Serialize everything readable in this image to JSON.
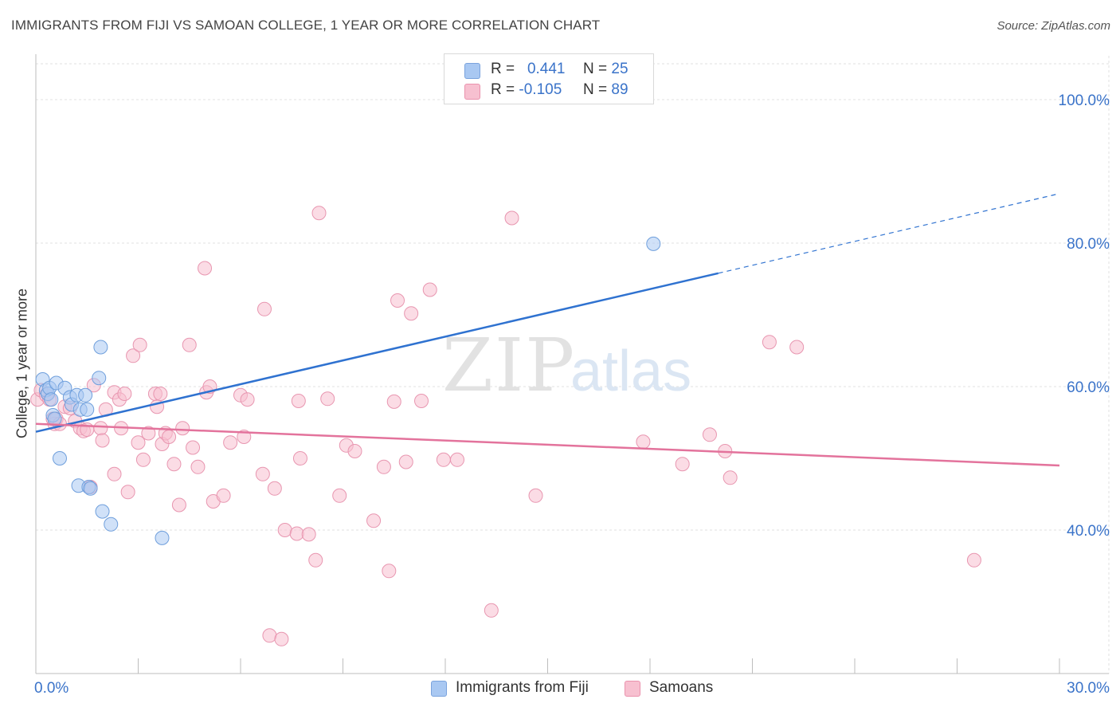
{
  "header": {
    "title": "IMMIGRANTS FROM FIJI VS SAMOAN COLLEGE, 1 YEAR OR MORE CORRELATION CHART",
    "source": "Source: ZipAtlas.com"
  },
  "watermark": {
    "zip": "ZIP",
    "atlas": "atlas"
  },
  "legend": {
    "rows": [
      {
        "r_label": "R =",
        "r_value": "0.441",
        "n_label": "N =",
        "n_value": "25",
        "color": "#a9c8f2",
        "border": "#7aa3dd"
      },
      {
        "r_label": "R =",
        "r_value": "-0.105",
        "n_label": "N =",
        "n_value": "89",
        "color": "#f7c0d0",
        "border": "#ea92ad"
      }
    ]
  },
  "bottom_legend": [
    {
      "label": "Immigrants from Fiji",
      "color": "#a9c8f2",
      "border": "#7aa3dd"
    },
    {
      "label": "Samoans",
      "color": "#f7c0d0",
      "border": "#ea92ad"
    }
  ],
  "colors": {
    "fiji_fill": "#a9c8f2",
    "fiji_stroke": "#6f9fdc",
    "fiji_line": "#2f72d0",
    "samoan_fill": "#f7c0d0",
    "samoan_stroke": "#e896b0",
    "samoan_line": "#e3739c",
    "tick_label": "#3a73c9",
    "grid": "#e2e2e2"
  },
  "chart_data": {
    "type": "scatter",
    "title": "IMMIGRANTS FROM FIJI VS SAMOAN COLLEGE, 1 YEAR OR MORE CORRELATION CHART",
    "xlabel": "",
    "ylabel": "College, 1 year or more",
    "xlim": [
      0,
      30
    ],
    "ylim": [
      20,
      105
    ],
    "x_tick_labels": [
      "0.0%",
      "30.0%"
    ],
    "y_ticks": [
      40,
      60,
      80,
      100
    ],
    "y_tick_labels": [
      "40.0%",
      "60.0%",
      "80.0%",
      "100.0%"
    ],
    "grid": true,
    "legend_position": "top-center",
    "series": [
      {
        "name": "Immigrants from Fiji",
        "r": 0.441,
        "n": 25,
        "trend": {
          "x0": 0,
          "y0": 53.7,
          "x_solid_end": 20,
          "y_solid_end": 75.8,
          "x_dash_end": 30,
          "y_dash_end": 86.9
        },
        "points": [
          [
            0.2,
            61.0
          ],
          [
            0.3,
            59.5
          ],
          [
            0.35,
            59.0
          ],
          [
            0.4,
            59.8
          ],
          [
            0.45,
            58.2
          ],
          [
            0.5,
            56.0
          ],
          [
            0.55,
            55.5
          ],
          [
            0.6,
            60.5
          ],
          [
            0.7,
            50.0
          ],
          [
            0.85,
            59.8
          ],
          [
            1.0,
            58.5
          ],
          [
            1.05,
            57.5
          ],
          [
            1.2,
            58.8
          ],
          [
            1.3,
            56.8
          ],
          [
            1.45,
            58.8
          ],
          [
            1.5,
            56.8
          ],
          [
            1.85,
            61.2
          ],
          [
            1.9,
            65.5
          ],
          [
            1.25,
            46.2
          ],
          [
            1.55,
            46.0
          ],
          [
            1.6,
            45.8
          ],
          [
            1.95,
            42.6
          ],
          [
            2.2,
            40.8
          ],
          [
            3.7,
            38.9
          ],
          [
            18.1,
            79.9
          ]
        ]
      },
      {
        "name": "Samoans",
        "r": -0.105,
        "n": 89,
        "trend": {
          "x0": 0,
          "y0": 54.8,
          "x_end": 30,
          "y_end": 49.0
        },
        "points": [
          [
            0.05,
            58.2
          ],
          [
            0.15,
            59.5
          ],
          [
            0.3,
            58.8
          ],
          [
            0.4,
            58.2
          ],
          [
            0.5,
            55.5
          ],
          [
            0.55,
            54.8
          ],
          [
            0.6,
            55.5
          ],
          [
            0.7,
            54.8
          ],
          [
            0.85,
            57.2
          ],
          [
            1.0,
            57.0
          ],
          [
            1.15,
            55.2
          ],
          [
            1.3,
            54.2
          ],
          [
            1.4,
            53.8
          ],
          [
            1.5,
            54.0
          ],
          [
            1.6,
            46.0
          ],
          [
            1.7,
            60.2
          ],
          [
            1.9,
            54.2
          ],
          [
            1.95,
            52.5
          ],
          [
            2.05,
            56.8
          ],
          [
            2.3,
            47.8
          ],
          [
            2.3,
            59.2
          ],
          [
            2.45,
            58.2
          ],
          [
            2.5,
            54.2
          ],
          [
            2.6,
            59.0
          ],
          [
            2.7,
            45.3
          ],
          [
            2.85,
            64.3
          ],
          [
            3.0,
            52.2
          ],
          [
            3.05,
            65.8
          ],
          [
            3.15,
            49.8
          ],
          [
            3.3,
            53.5
          ],
          [
            3.5,
            59.0
          ],
          [
            3.55,
            57.2
          ],
          [
            3.65,
            59.0
          ],
          [
            3.7,
            52.0
          ],
          [
            3.8,
            53.5
          ],
          [
            3.9,
            53.0
          ],
          [
            4.05,
            49.2
          ],
          [
            4.2,
            43.5
          ],
          [
            4.3,
            54.2
          ],
          [
            4.5,
            65.8
          ],
          [
            4.6,
            51.5
          ],
          [
            4.75,
            48.8
          ],
          [
            4.95,
            76.5
          ],
          [
            5.0,
            59.2
          ],
          [
            5.1,
            60.0
          ],
          [
            5.2,
            44.0
          ],
          [
            5.5,
            44.8
          ],
          [
            5.7,
            52.2
          ],
          [
            6.0,
            58.8
          ],
          [
            6.2,
            58.2
          ],
          [
            6.1,
            53.0
          ],
          [
            6.65,
            47.8
          ],
          [
            6.7,
            70.8
          ],
          [
            6.85,
            25.3
          ],
          [
            7.0,
            45.8
          ],
          [
            7.2,
            24.8
          ],
          [
            7.3,
            40.0
          ],
          [
            7.65,
            39.5
          ],
          [
            7.7,
            58.0
          ],
          [
            7.75,
            50.0
          ],
          [
            8.0,
            39.4
          ],
          [
            8.2,
            35.8
          ],
          [
            8.3,
            84.2
          ],
          [
            8.55,
            58.3
          ],
          [
            8.9,
            44.8
          ],
          [
            9.1,
            51.8
          ],
          [
            9.35,
            51.0
          ],
          [
            9.9,
            41.3
          ],
          [
            10.2,
            48.8
          ],
          [
            10.35,
            34.3
          ],
          [
            10.6,
            72.0
          ],
          [
            10.85,
            49.5
          ],
          [
            11.0,
            70.2
          ],
          [
            11.3,
            58.0
          ],
          [
            11.55,
            73.5
          ],
          [
            11.95,
            49.8
          ],
          [
            12.35,
            49.8
          ],
          [
            13.35,
            28.8
          ],
          [
            13.95,
            83.5
          ],
          [
            14.65,
            44.8
          ],
          [
            17.8,
            52.3
          ],
          [
            18.95,
            49.2
          ],
          [
            19.75,
            53.3
          ],
          [
            20.2,
            51.0
          ],
          [
            20.35,
            47.3
          ],
          [
            21.5,
            66.2
          ],
          [
            22.3,
            65.5
          ],
          [
            27.5,
            35.8
          ],
          [
            10.5,
            57.9
          ]
        ]
      }
    ]
  }
}
